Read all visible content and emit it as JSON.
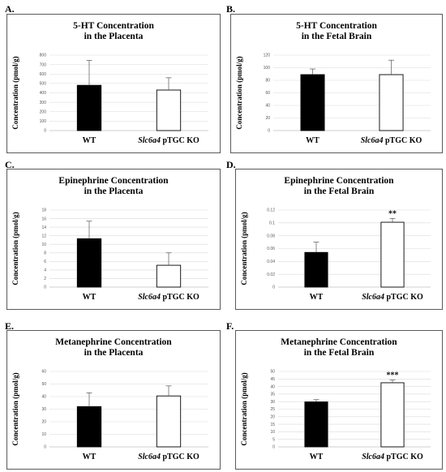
{
  "panels": [
    {
      "label": "A.",
      "title_lines": [
        "5-HT Concentration",
        "in the Placenta"
      ]
    },
    {
      "label": "B.",
      "title_lines": [
        "5-HT Concentration",
        "in the Fetal Brain"
      ]
    },
    {
      "label": "C.",
      "title_lines": [
        "Epinephrine Concentration",
        "in the Placenta"
      ]
    },
    {
      "label": "D.",
      "title_lines": [
        "Epinephrine Concentration",
        "in the Fetal Brain"
      ]
    },
    {
      "label": "E.",
      "title_lines": [
        "Metanephrine Concentration",
        "in the Placenta"
      ]
    },
    {
      "label": "F.",
      "title_lines": [
        "Metanephrine Concentration",
        "in the Fetal Brain"
      ]
    }
  ],
  "chart_data": [
    {
      "type": "bar",
      "title": "5-HT Concentration in the Placenta",
      "ylabel": "Concentration (pmol/g)",
      "categories": [
        "WT",
        "Slc6a4 pTGC KO"
      ],
      "category_parts": [
        [
          "WT"
        ],
        [
          "Slc6a4",
          " pTGC KO"
        ]
      ],
      "values": [
        480,
        430
      ],
      "errors": [
        265,
        130
      ],
      "bar_colors": [
        "#000000",
        "#ffffff"
      ],
      "significance": [
        "",
        ""
      ],
      "ylim": [
        0,
        800
      ],
      "yticks": [
        0,
        100,
        200,
        300,
        400,
        500,
        600,
        700,
        800
      ],
      "ytick_labels": [
        "0",
        "100",
        "200",
        "300",
        "400",
        "500",
        "600",
        "700",
        "800"
      ],
      "grid": true
    },
    {
      "type": "bar",
      "title": "5-HT Concentration in the Fetal Brain",
      "ylabel": "Concentration (pmol/g)",
      "categories": [
        "WT",
        "Slc6a4 pTGC KO"
      ],
      "category_parts": [
        [
          "WT"
        ],
        [
          "Slc6a4",
          " pTGC KO"
        ]
      ],
      "values": [
        89,
        89
      ],
      "errors": [
        9,
        23
      ],
      "bar_colors": [
        "#000000",
        "#ffffff"
      ],
      "significance": [
        "",
        ""
      ],
      "ylim": [
        0,
        120
      ],
      "yticks": [
        0,
        20,
        40,
        60,
        80,
        100,
        120
      ],
      "ytick_labels": [
        "0",
        "20",
        "40",
        "60",
        "80",
        "100",
        "120"
      ],
      "grid": true
    },
    {
      "type": "bar",
      "title": "Epinephrine Concentration in the Placenta",
      "ylabel": "Concentration (pmol/g)",
      "categories": [
        "WT",
        "Slc6a4 pTGC KO"
      ],
      "category_parts": [
        [
          "WT"
        ],
        [
          "Slc6a4",
          " pTGC KO"
        ]
      ],
      "values": [
        11.3,
        5.1
      ],
      "errors": [
        4.1,
        2.9
      ],
      "bar_colors": [
        "#000000",
        "#ffffff"
      ],
      "significance": [
        "",
        ""
      ],
      "ylim": [
        0,
        18
      ],
      "yticks": [
        0,
        2,
        4,
        6,
        8,
        10,
        12,
        14,
        16,
        18
      ],
      "ytick_labels": [
        "0",
        "2",
        "4",
        "6",
        "8",
        "10",
        "12",
        "14",
        "16",
        "18"
      ],
      "grid": true
    },
    {
      "type": "bar",
      "title": "Epinephrine Concentration in the Fetal Brain",
      "ylabel": "Concentration (pmol/g)",
      "categories": [
        "WT",
        "Slc6a4 pTGC KO"
      ],
      "category_parts": [
        [
          "WT"
        ],
        [
          "Slc6a4",
          " pTGC KO"
        ]
      ],
      "values": [
        0.054,
        0.101
      ],
      "errors": [
        0.016,
        0.006
      ],
      "bar_colors": [
        "#000000",
        "#ffffff"
      ],
      "significance": [
        "",
        "**"
      ],
      "ylim": [
        0,
        0.12
      ],
      "yticks": [
        0,
        0.02,
        0.04,
        0.06,
        0.08,
        0.1,
        0.12
      ],
      "ytick_labels": [
        "0",
        "0.02",
        "0.04",
        "0.06",
        "0.08",
        "0.1",
        "0.12"
      ],
      "grid": true
    },
    {
      "type": "bar",
      "title": "Metanephrine Concentration in the Placenta",
      "ylabel": "Concentration (pmol/g)",
      "categories": [
        "WT",
        "Slc6a4 pTGC KO"
      ],
      "category_parts": [
        [
          "WT"
        ],
        [
          "Slc6a4",
          " pTGC KO"
        ]
      ],
      "values": [
        32,
        40.5
      ],
      "errors": [
        11,
        8
      ],
      "bar_colors": [
        "#000000",
        "#ffffff"
      ],
      "significance": [
        "",
        ""
      ],
      "ylim": [
        0,
        60
      ],
      "yticks": [
        0,
        10,
        20,
        30,
        40,
        50,
        60
      ],
      "ytick_labels": [
        "0",
        "10",
        "20",
        "30",
        "40",
        "50",
        "60"
      ],
      "grid": true
    },
    {
      "type": "bar",
      "title": "Metanephrine Concentration in the Fetal Brain",
      "ylabel": "Concentration (pmol/g)",
      "categories": [
        "WT",
        "Slc6a4 pTGC KO"
      ],
      "category_parts": [
        [
          "WT"
        ],
        [
          "Slc6a4",
          " pTGC KO"
        ]
      ],
      "values": [
        29.8,
        42.5
      ],
      "errors": [
        1.5,
        1.8
      ],
      "bar_colors": [
        "#000000",
        "#ffffff"
      ],
      "significance": [
        "",
        "***"
      ],
      "ylim": [
        0,
        50
      ],
      "yticks": [
        0,
        5,
        10,
        15,
        20,
        25,
        30,
        35,
        40,
        45,
        50
      ],
      "ytick_labels": [
        "0",
        "5",
        "10",
        "15",
        "20",
        "25",
        "30",
        "35",
        "40",
        "45",
        "50"
      ],
      "grid": true
    }
  ]
}
